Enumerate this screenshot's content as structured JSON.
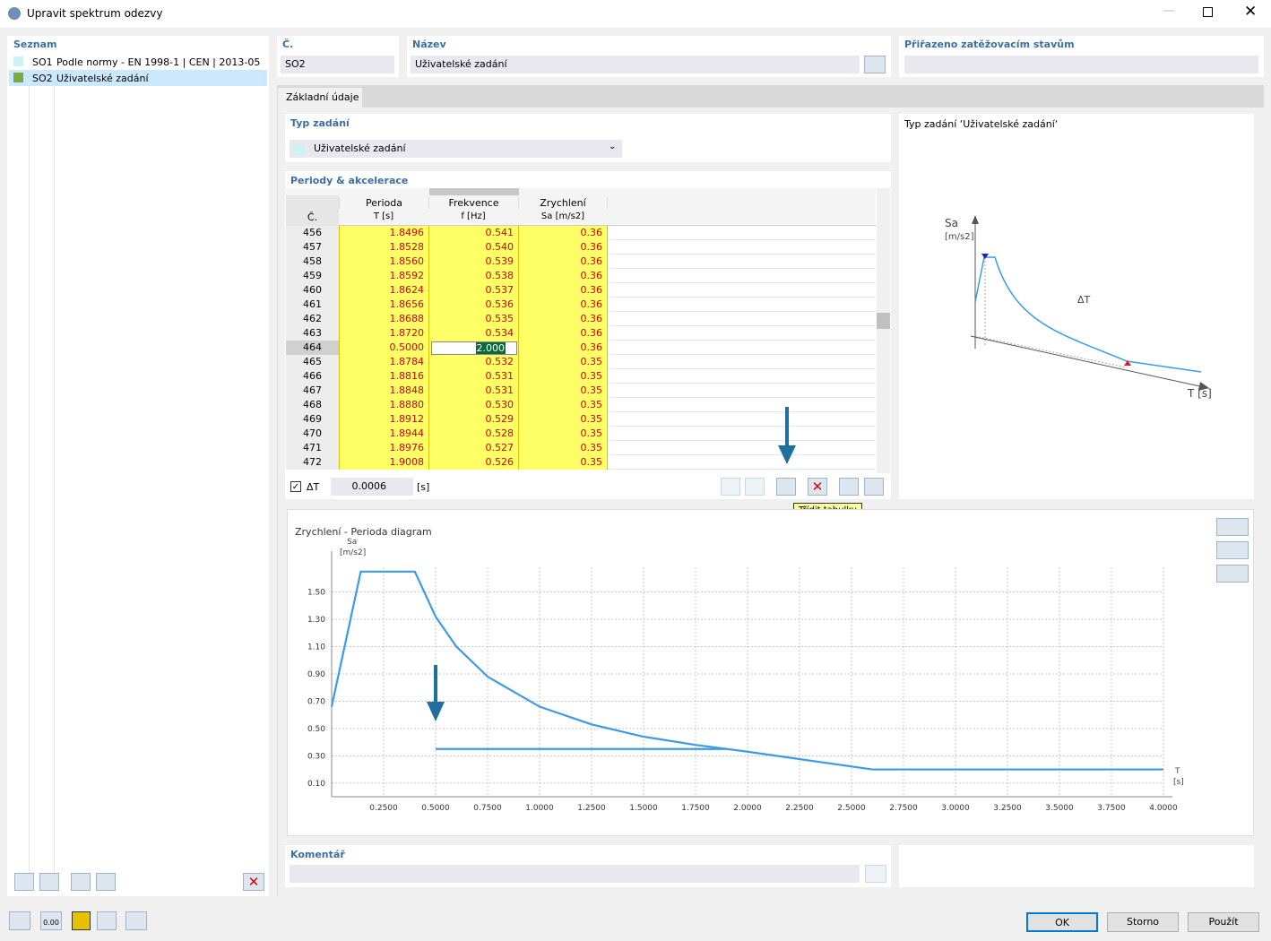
{
  "window": {
    "title": "Upravit spektrum odezvy"
  },
  "list": {
    "title": "Seznam",
    "items": [
      {
        "id": "SO1",
        "name": "Podle normy - EN 1998-1 | CEN | 2013-05"
      },
      {
        "id": "SO2",
        "name": "Uživatelské zadání"
      }
    ]
  },
  "fields": {
    "number_label": "Č.",
    "number": "SO2",
    "name_label": "Název",
    "name": "Uživatelské zadání",
    "assigned_label": "Přiřazeno zatěžovacím stavům"
  },
  "tab": "Základní údaje",
  "input_type": {
    "label": "Typ zadání",
    "value": "Uživatelské zadání"
  },
  "table": {
    "title": "Periody & akcelerace",
    "header": [
      "Č.",
      "Perioda",
      "Frekvence",
      "Zrychlení"
    ],
    "units": [
      "T [s]",
      "f [Hz]",
      "Sa [m/s2]"
    ],
    "rows": [
      [
        "456",
        "1.8496",
        "0.541",
        "0.36"
      ],
      [
        "457",
        "1.8528",
        "0.540",
        "0.36"
      ],
      [
        "458",
        "1.8560",
        "0.539",
        "0.36"
      ],
      [
        "459",
        "1.8592",
        "0.538",
        "0.36"
      ],
      [
        "460",
        "1.8624",
        "0.537",
        "0.36"
      ],
      [
        "461",
        "1.8656",
        "0.536",
        "0.36"
      ],
      [
        "462",
        "1.8688",
        "0.535",
        "0.36"
      ],
      [
        "463",
        "1.8720",
        "0.534",
        "0.36"
      ],
      [
        "464",
        "0.5000",
        "2.000",
        "0.36"
      ],
      [
        "465",
        "1.8784",
        "0.532",
        "0.35"
      ],
      [
        "466",
        "1.8816",
        "0.531",
        "0.35"
      ],
      [
        "467",
        "1.8848",
        "0.531",
        "0.35"
      ],
      [
        "468",
        "1.8880",
        "0.530",
        "0.35"
      ],
      [
        "469",
        "1.8912",
        "0.529",
        "0.35"
      ],
      [
        "470",
        "1.8944",
        "0.528",
        "0.35"
      ],
      [
        "471",
        "1.8976",
        "0.527",
        "0.35"
      ],
      [
        "472",
        "1.9008",
        "0.526",
        "0.35"
      ]
    ]
  },
  "step": {
    "label": "ΔT",
    "value": "0.0006",
    "unit": "[s]"
  },
  "tooltip": "Třídit tabulku",
  "preview": {
    "title": "Typ zadání  ‘Uživatelské zadání‘",
    "y_label": "Sa",
    "y_unit": "[m/s2]",
    "delta": "ΔT",
    "x_label": "T [s]"
  },
  "chart_data": {
    "type": "line",
    "title": "Zrychlení - Perioda diagram",
    "y_label": "Sa",
    "y_unit": "[m/s2]",
    "x_label": "T",
    "x_unit": "[s]",
    "xlim": [
      0,
      4
    ],
    "ylim": [
      0,
      1.8
    ],
    "grid": true,
    "xticks": [
      {
        "value": 0.25,
        "label": "0.2500"
      },
      {
        "value": 0.5,
        "label": "0.5000"
      },
      {
        "value": 0.75,
        "label": "0.7500"
      },
      {
        "value": 1,
        "label": "1.0000"
      },
      {
        "value": 1.25,
        "label": "1.2500"
      },
      {
        "value": 1.5,
        "label": "1.5000"
      },
      {
        "value": 1.75,
        "label": "1.7500"
      },
      {
        "value": 2,
        "label": "2.0000"
      },
      {
        "value": 2.25,
        "label": "2.2500"
      },
      {
        "value": 2.5,
        "label": "2.5000"
      },
      {
        "value": 2.75,
        "label": "2.7500"
      },
      {
        "value": 3,
        "label": "3.0000"
      },
      {
        "value": 3.25,
        "label": "3.2500"
      },
      {
        "value": 3.5,
        "label": "3.5000"
      },
      {
        "value": 3.75,
        "label": "3.7500"
      },
      {
        "value": 4,
        "label": "4.0000"
      }
    ],
    "yticks": [
      {
        "value": 0.1,
        "label": "0.10"
      },
      {
        "value": 0.3,
        "label": "0.30"
      },
      {
        "value": 0.5,
        "label": "0.50"
      },
      {
        "value": 0.7,
        "label": "0.70"
      },
      {
        "value": 0.9,
        "label": "0.90"
      },
      {
        "value": 1.1,
        "label": "1.10"
      },
      {
        "value": 1.3,
        "label": "1.30"
      },
      {
        "value": 1.5,
        "label": "1.50"
      }
    ],
    "series": [
      {
        "color": "#3b9be8",
        "x": [
          0,
          0.14,
          0.4,
          0.5,
          0.6,
          0.75,
          1.0,
          1.25,
          1.5,
          1.75,
          2.0,
          2.6,
          4.0
        ],
        "values": [
          0.66,
          1.65,
          1.65,
          1.32,
          1.1,
          0.88,
          0.66,
          0.53,
          0.44,
          0.38,
          0.33,
          0.2,
          0.2
        ]
      },
      {
        "color": "#3b9be8",
        "x": [
          0.5,
          1.9
        ],
        "values": [
          0.35,
          0.35
        ]
      }
    ]
  },
  "comment": {
    "label": "Komentář"
  },
  "toolbar_icon_label": "0.00",
  "buttons": [
    "OK",
    "Storno",
    "Použít"
  ]
}
